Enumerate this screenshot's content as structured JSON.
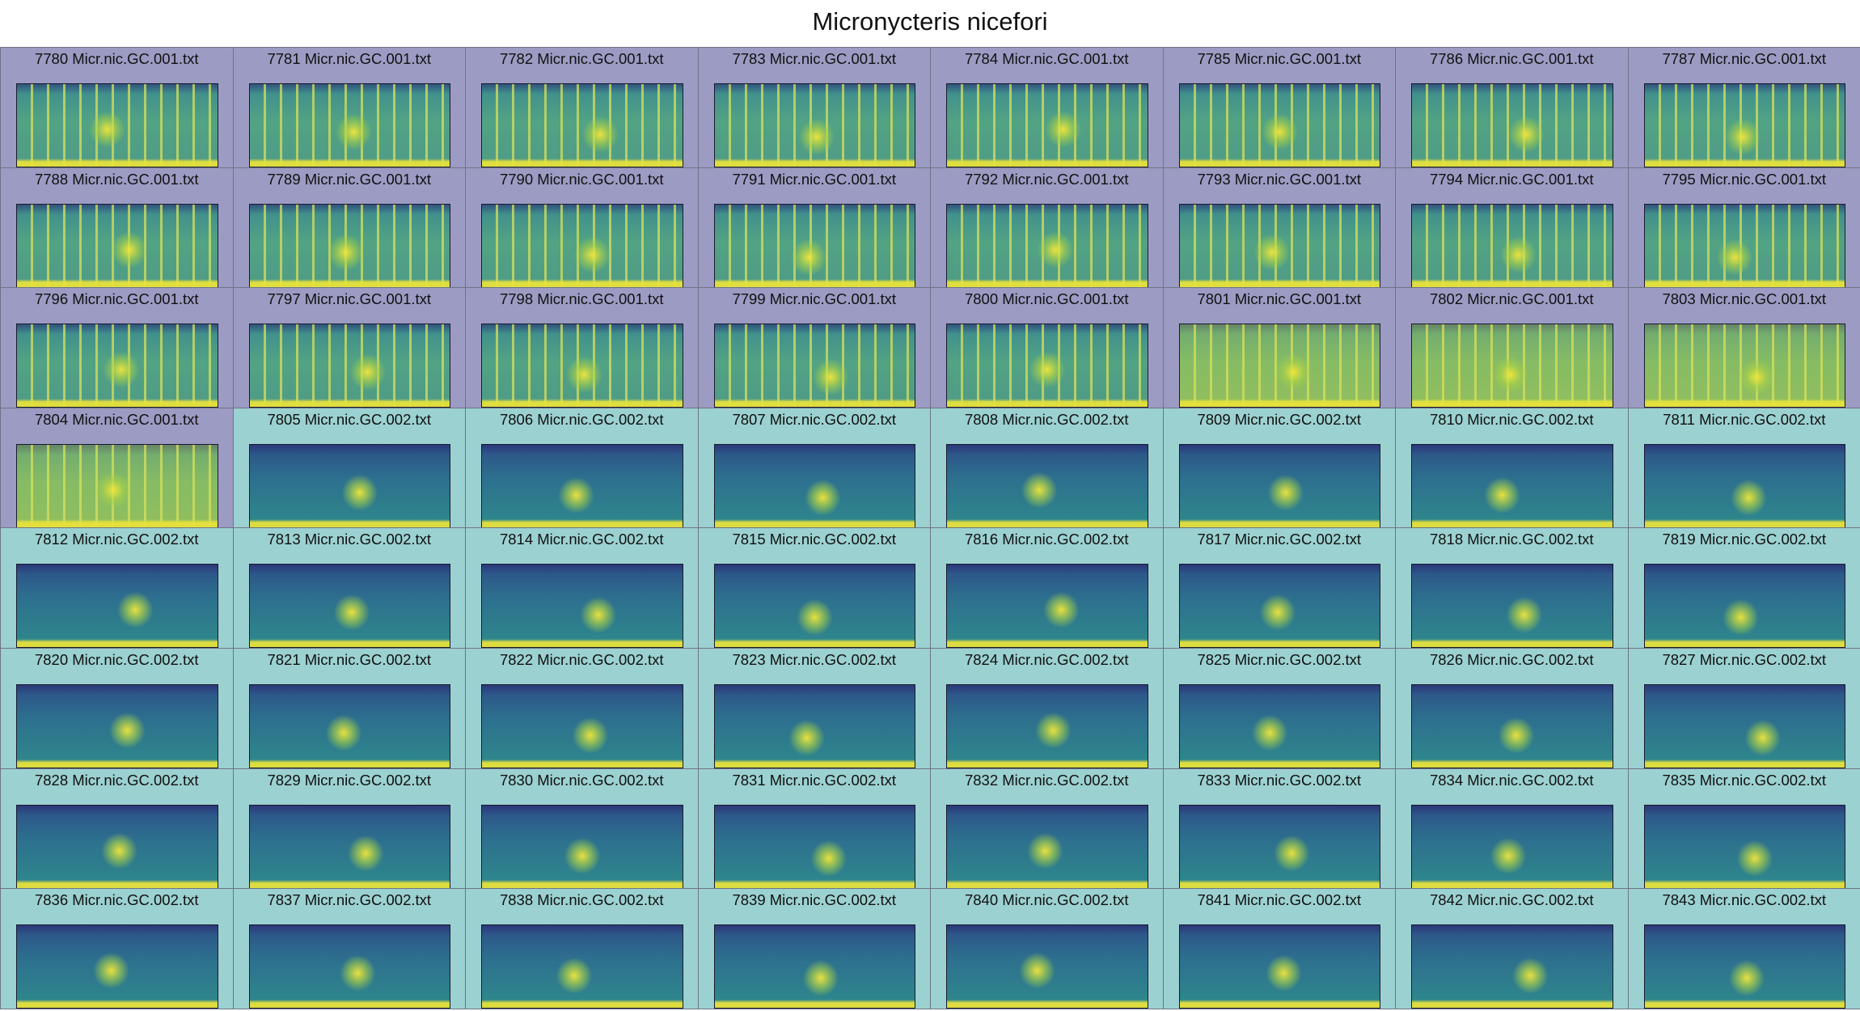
{
  "title": "Micronycteris nicefori",
  "grid": {
    "rows": 8,
    "cols": 8
  },
  "colors": {
    "group_001_background": "#9c9bc3",
    "group_002_background": "#9cd1d1",
    "cell_border": "#6f7384",
    "spectrogram_low": "#2c6b8e",
    "spectrogram_high": "#e8e53b"
  },
  "cells": [
    {
      "label": "7780 Micr.nic.GC.001.txt",
      "group": "001"
    },
    {
      "label": "7781 Micr.nic.GC.001.txt",
      "group": "001"
    },
    {
      "label": "7782 Micr.nic.GC.001.txt",
      "group": "001"
    },
    {
      "label": "7783 Micr.nic.GC.001.txt",
      "group": "001"
    },
    {
      "label": "7784 Micr.nic.GC.001.txt",
      "group": "001"
    },
    {
      "label": "7785 Micr.nic.GC.001.txt",
      "group": "001"
    },
    {
      "label": "7786 Micr.nic.GC.001.txt",
      "group": "001"
    },
    {
      "label": "7787 Micr.nic.GC.001.txt",
      "group": "001"
    },
    {
      "label": "7788 Micr.nic.GC.001.txt",
      "group": "001"
    },
    {
      "label": "7789 Micr.nic.GC.001.txt",
      "group": "001"
    },
    {
      "label": "7790 Micr.nic.GC.001.txt",
      "group": "001"
    },
    {
      "label": "7791 Micr.nic.GC.001.txt",
      "group": "001"
    },
    {
      "label": "7792 Micr.nic.GC.001.txt",
      "group": "001"
    },
    {
      "label": "7793 Micr.nic.GC.001.txt",
      "group": "001"
    },
    {
      "label": "7794 Micr.nic.GC.001.txt",
      "group": "001"
    },
    {
      "label": "7795 Micr.nic.GC.001.txt",
      "group": "001"
    },
    {
      "label": "7796 Micr.nic.GC.001.txt",
      "group": "001"
    },
    {
      "label": "7797 Micr.nic.GC.001.txt",
      "group": "001"
    },
    {
      "label": "7798 Micr.nic.GC.001.txt",
      "group": "001"
    },
    {
      "label": "7799 Micr.nic.GC.001.txt",
      "group": "001"
    },
    {
      "label": "7800 Micr.nic.GC.001.txt",
      "group": "001"
    },
    {
      "label": "7801 Micr.nic.GC.001.txt",
      "group": "001"
    },
    {
      "label": "7802 Micr.nic.GC.001.txt",
      "group": "001"
    },
    {
      "label": "7803 Micr.nic.GC.001.txt",
      "group": "001"
    },
    {
      "label": "7804 Micr.nic.GC.001.txt",
      "group": "001"
    },
    {
      "label": "7805 Micr.nic.GC.002.txt",
      "group": "002"
    },
    {
      "label": "7806 Micr.nic.GC.002.txt",
      "group": "002"
    },
    {
      "label": "7807 Micr.nic.GC.002.txt",
      "group": "002"
    },
    {
      "label": "7808 Micr.nic.GC.002.txt",
      "group": "002"
    },
    {
      "label": "7809 Micr.nic.GC.002.txt",
      "group": "002"
    },
    {
      "label": "7810 Micr.nic.GC.002.txt",
      "group": "002"
    },
    {
      "label": "7811 Micr.nic.GC.002.txt",
      "group": "002"
    },
    {
      "label": "7812 Micr.nic.GC.002.txt",
      "group": "002"
    },
    {
      "label": "7813 Micr.nic.GC.002.txt",
      "group": "002"
    },
    {
      "label": "7814 Micr.nic.GC.002.txt",
      "group": "002"
    },
    {
      "label": "7815 Micr.nic.GC.002.txt",
      "group": "002"
    },
    {
      "label": "7816 Micr.nic.GC.002.txt",
      "group": "002"
    },
    {
      "label": "7817 Micr.nic.GC.002.txt",
      "group": "002"
    },
    {
      "label": "7818 Micr.nic.GC.002.txt",
      "group": "002"
    },
    {
      "label": "7819 Micr.nic.GC.002.txt",
      "group": "002"
    },
    {
      "label": "7820 Micr.nic.GC.002.txt",
      "group": "002"
    },
    {
      "label": "7821 Micr.nic.GC.002.txt",
      "group": "002"
    },
    {
      "label": "7822 Micr.nic.GC.002.txt",
      "group": "002"
    },
    {
      "label": "7823 Micr.nic.GC.002.txt",
      "group": "002"
    },
    {
      "label": "7824 Micr.nic.GC.002.txt",
      "group": "002"
    },
    {
      "label": "7825 Micr.nic.GC.002.txt",
      "group": "002"
    },
    {
      "label": "7826 Micr.nic.GC.002.txt",
      "group": "002"
    },
    {
      "label": "7827 Micr.nic.GC.002.txt",
      "group": "002"
    },
    {
      "label": "7828 Micr.nic.GC.002.txt",
      "group": "002"
    },
    {
      "label": "7829 Micr.nic.GC.002.txt",
      "group": "002"
    },
    {
      "label": "7830 Micr.nic.GC.002.txt",
      "group": "002"
    },
    {
      "label": "7831 Micr.nic.GC.002.txt",
      "group": "002"
    },
    {
      "label": "7832 Micr.nic.GC.002.txt",
      "group": "002"
    },
    {
      "label": "7833 Micr.nic.GC.002.txt",
      "group": "002"
    },
    {
      "label": "7834 Micr.nic.GC.002.txt",
      "group": "002"
    },
    {
      "label": "7835 Micr.nic.GC.002.txt",
      "group": "002"
    },
    {
      "label": "7836 Micr.nic.GC.002.txt",
      "group": "002"
    },
    {
      "label": "7837 Micr.nic.GC.002.txt",
      "group": "002"
    },
    {
      "label": "7838 Micr.nic.GC.002.txt",
      "group": "002"
    },
    {
      "label": "7839 Micr.nic.GC.002.txt",
      "group": "002"
    },
    {
      "label": "7840 Micr.nic.GC.002.txt",
      "group": "002"
    },
    {
      "label": "7841 Micr.nic.GC.002.txt",
      "group": "002"
    },
    {
      "label": "7842 Micr.nic.GC.002.txt",
      "group": "002"
    },
    {
      "label": "7843 Micr.nic.GC.002.txt",
      "group": "002"
    }
  ]
}
